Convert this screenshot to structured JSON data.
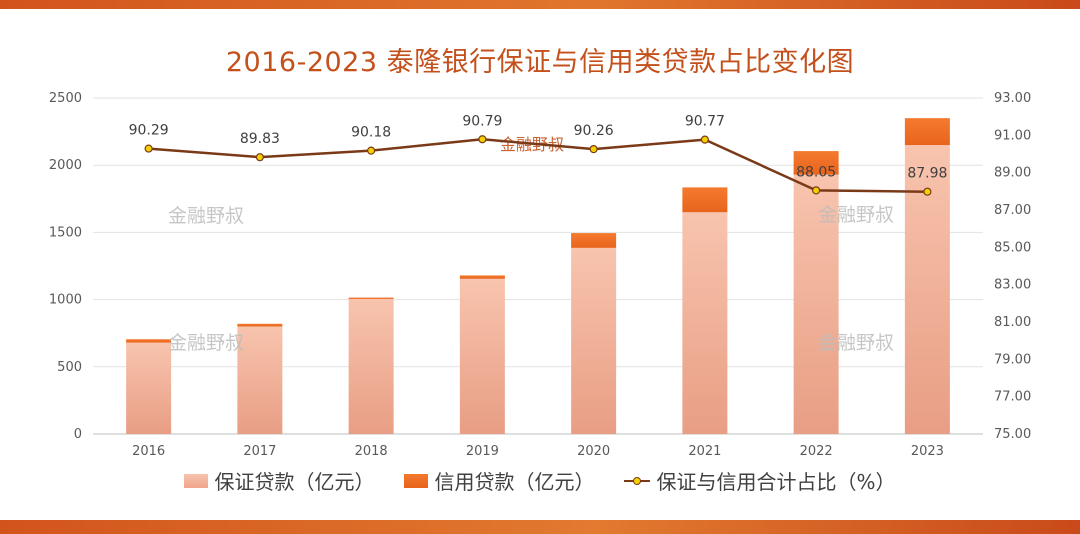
{
  "chart_data": {
    "type": "bar",
    "title": "2016-2023 泰隆银行保证与信用类贷款占比变化图",
    "categories": [
      "2016",
      "2017",
      "2018",
      "2019",
      "2020",
      "2021",
      "2022",
      "2023"
    ],
    "series": [
      {
        "name": "保证贷款（亿元）",
        "type": "bar",
        "stacked": true,
        "axis": "left",
        "values": [
          680,
          800,
          1005,
          1155,
          1385,
          1650,
          1930,
          2150
        ]
      },
      {
        "name": "信用贷款（亿元）",
        "type": "bar",
        "stacked": true,
        "axis": "left",
        "values": [
          25,
          20,
          10,
          25,
          110,
          185,
          175,
          200
        ]
      },
      {
        "name": "保证与信用合计占比（%）",
        "type": "line",
        "axis": "right",
        "values": [
          90.29,
          89.83,
          90.18,
          90.79,
          90.26,
          90.77,
          88.05,
          87.98
        ],
        "labels": [
          "90.29",
          "89.83",
          "90.18",
          "90.79",
          "90.26",
          "90.77",
          "88.05",
          "87.98"
        ]
      }
    ],
    "y_left": {
      "min": 0,
      "max": 2500,
      "ticks": [
        "0",
        "500",
        "1000",
        "1500",
        "2000",
        "2500"
      ]
    },
    "y_right": {
      "min": 75,
      "max": 93,
      "ticks": [
        "75.00",
        "77.00",
        "79.00",
        "81.00",
        "83.00",
        "85.00",
        "87.00",
        "89.00",
        "91.00",
        "93.00"
      ]
    },
    "grid": true,
    "legend_position": "bottom"
  },
  "watermark": "金融野叔",
  "colors": {
    "title": "#c4501c",
    "guarantee": "#f4b49a",
    "credit": "#f07325",
    "line": "#7a3a17",
    "marker": "#f5d000",
    "band": "#d2541c"
  }
}
